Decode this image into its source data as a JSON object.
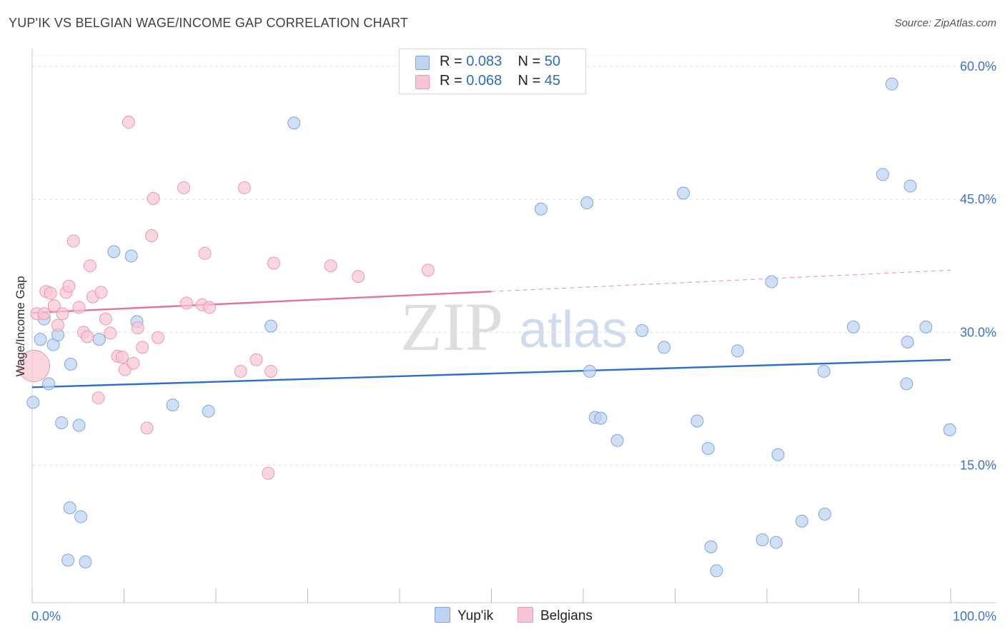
{
  "title": "YUP'IK VS BELGIAN WAGE/INCOME GAP CORRELATION CHART",
  "source": "Source: ZipAtlas.com",
  "watermark": {
    "zip": "ZIP",
    "atlas": "atlas"
  },
  "colors": {
    "yupik_fill": "#bcd3f2",
    "yupik_stroke": "#7fa6dd",
    "yupik_line": "#2b6fcb",
    "belgian_fill": "#f8c6d3",
    "belgian_stroke": "#ea99b0",
    "belgian_line": "#e27496",
    "axis_label": "#3d74c9",
    "grid": "#dddddd"
  },
  "legend": {
    "rows": [
      {
        "r_label": "R =",
        "r_value": "0.083",
        "n_label": "N =",
        "n_value": "50"
      },
      {
        "r_label": "R =",
        "r_value": "0.068",
        "n_label": "N =",
        "n_value": "45"
      }
    ]
  },
  "bottom_legend": {
    "yupik": "Yup'ik",
    "belgians": "Belgians"
  },
  "chart_data": {
    "type": "scatter",
    "title": "YUP'IK VS BELGIAN WAGE/INCOME GAP CORRELATION CHART",
    "xlabel": "",
    "ylabel": "Wage/Income Gap",
    "xlim": [
      0,
      100
    ],
    "ylim": [
      -0.5,
      62
    ],
    "x_tick_labels": {
      "left": "0.0%",
      "right": "100.0%"
    },
    "y_ticks": [
      {
        "value": 15,
        "label": "15.0%"
      },
      {
        "value": 30,
        "label": "30.0%"
      },
      {
        "value": 45,
        "label": "45.0%"
      },
      {
        "value": 60,
        "label": "60.0%"
      }
    ],
    "series": [
      {
        "name": "Yup'ik",
        "trend": {
          "x0": 0,
          "y0": 23.8,
          "x1": 100,
          "y1": 26.9,
          "solid_until": 100
        },
        "points": [
          [
            0.1,
            22.1
          ],
          [
            1.3,
            31.5
          ],
          [
            1.8,
            24.2
          ],
          [
            0.9,
            29.2
          ],
          [
            2.3,
            28.6
          ],
          [
            2.8,
            29.7
          ],
          [
            3.2,
            19.8
          ],
          [
            4.2,
            26.4
          ],
          [
            5.1,
            19.5
          ],
          [
            7.3,
            29.2
          ],
          [
            8.9,
            39.1
          ],
          [
            10.8,
            38.6
          ],
          [
            11.4,
            31.2
          ],
          [
            4.1,
            10.2
          ],
          [
            5.3,
            9.2
          ],
          [
            3.9,
            4.3
          ],
          [
            5.8,
            4.1
          ],
          [
            15.3,
            21.8
          ],
          [
            19.2,
            21.1
          ],
          [
            28.5,
            53.6
          ],
          [
            26.0,
            30.7
          ],
          [
            55.4,
            43.9
          ],
          [
            60.4,
            44.6
          ],
          [
            70.9,
            45.7
          ],
          [
            93.6,
            58.0
          ],
          [
            92.6,
            47.8
          ],
          [
            95.6,
            46.5
          ],
          [
            80.5,
            35.7
          ],
          [
            60.7,
            25.6
          ],
          [
            61.3,
            20.4
          ],
          [
            61.9,
            20.3
          ],
          [
            63.7,
            17.8
          ],
          [
            66.4,
            30.2
          ],
          [
            68.8,
            28.3
          ],
          [
            72.4,
            20.0
          ],
          [
            73.6,
            16.9
          ],
          [
            76.8,
            27.9
          ],
          [
            81.2,
            16.2
          ],
          [
            86.2,
            25.6
          ],
          [
            89.4,
            30.6
          ],
          [
            95.3,
            28.9
          ],
          [
            99.9,
            19.0
          ],
          [
            95.2,
            24.2
          ],
          [
            97.3,
            30.6
          ],
          [
            73.9,
            5.8
          ],
          [
            74.5,
            3.1
          ],
          [
            79.5,
            6.6
          ],
          [
            81.0,
            6.3
          ],
          [
            83.8,
            8.7
          ],
          [
            86.3,
            9.5
          ]
        ]
      },
      {
        "name": "Belgians",
        "trend": {
          "x0": 0,
          "y0": 32.2,
          "x1": 100,
          "y1": 37.0,
          "solid_until": 50
        },
        "points": [
          [
            0.5,
            32.1
          ],
          [
            1.3,
            32.1
          ],
          [
            1.5,
            34.6
          ],
          [
            2.0,
            34.4
          ],
          [
            2.4,
            33.0
          ],
          [
            2.8,
            30.8
          ],
          [
            3.3,
            32.1
          ],
          [
            3.7,
            34.5
          ],
          [
            4.0,
            35.2
          ],
          [
            4.5,
            40.3
          ],
          [
            5.1,
            32.8
          ],
          [
            5.6,
            30.0
          ],
          [
            6.0,
            29.5
          ],
          [
            6.3,
            37.5
          ],
          [
            6.6,
            34.0
          ],
          [
            7.2,
            22.6
          ],
          [
            7.5,
            34.5
          ],
          [
            8.0,
            31.5
          ],
          [
            8.5,
            29.9
          ],
          [
            9.3,
            27.3
          ],
          [
            9.8,
            27.2
          ],
          [
            10.1,
            25.8
          ],
          [
            10.5,
            53.7
          ],
          [
            11.0,
            26.5
          ],
          [
            11.5,
            30.5
          ],
          [
            12.0,
            28.3
          ],
          [
            12.5,
            19.2
          ],
          [
            13.0,
            40.9
          ],
          [
            13.2,
            45.1
          ],
          [
            13.7,
            29.4
          ],
          [
            16.5,
            46.3
          ],
          [
            16.8,
            33.3
          ],
          [
            18.5,
            33.1
          ],
          [
            18.8,
            38.9
          ],
          [
            19.3,
            32.8
          ],
          [
            22.7,
            25.6
          ],
          [
            23.1,
            46.3
          ],
          [
            24.4,
            26.9
          ],
          [
            25.7,
            14.1
          ],
          [
            26.0,
            25.6
          ],
          [
            26.3,
            37.8
          ],
          [
            32.5,
            37.5
          ],
          [
            35.5,
            36.3
          ],
          [
            43.1,
            37.0
          ],
          [
            0.2,
            26.2
          ]
        ]
      }
    ]
  }
}
